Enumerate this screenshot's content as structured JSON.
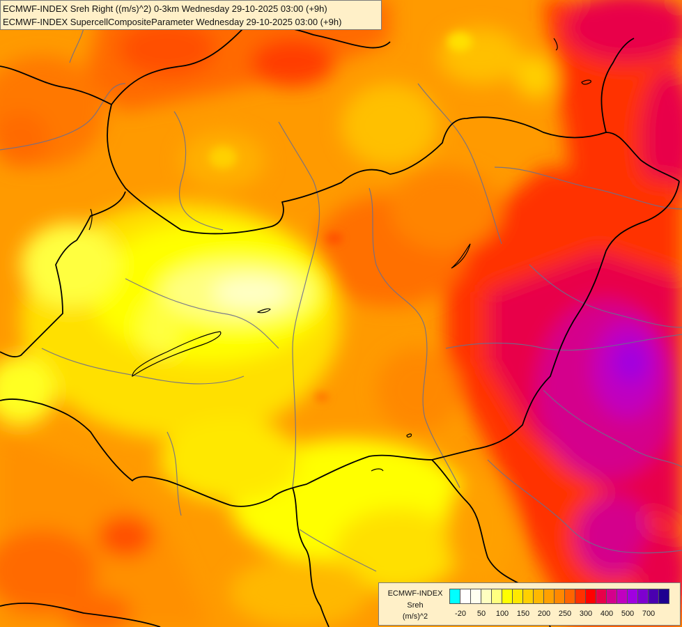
{
  "header": {
    "line1": "ECMWF-INDEX Sreh Right ((m/s)^2) 0-3km Wednesday 29-10-2025 03:00 (+9h)",
    "line2": "ECMWF-INDEX SupercellCompositeParameter Wednesday 29-10-2025 03:00 (+9h)"
  },
  "legend": {
    "model": "ECMWF-INDEX",
    "variable": "Sreh",
    "unit": "(m/s)^2",
    "colors": [
      "#00ffff",
      "#ffffff",
      "#fffff0",
      "#ffffc0",
      "#ffff80",
      "#ffff00",
      "#ffe800",
      "#ffd000",
      "#ffb800",
      "#ffa000",
      "#ff8800",
      "#ff6400",
      "#ff3000",
      "#ff0000",
      "#e8004a",
      "#d4008c",
      "#c000c0",
      "#a000e0",
      "#7e00d0",
      "#4a00b0",
      "#1e0090"
    ],
    "ticks": [
      {
        "label": "-20",
        "index": 1
      },
      {
        "label": "50",
        "index": 3
      },
      {
        "label": "100",
        "index": 5
      },
      {
        "label": "150",
        "index": 7
      },
      {
        "label": "200",
        "index": 9
      },
      {
        "label": "250",
        "index": 11
      },
      {
        "label": "300",
        "index": 13
      },
      {
        "label": "400",
        "index": 15
      },
      {
        "label": "500",
        "index": 17
      },
      {
        "label": "700",
        "index": 19
      }
    ]
  }
}
